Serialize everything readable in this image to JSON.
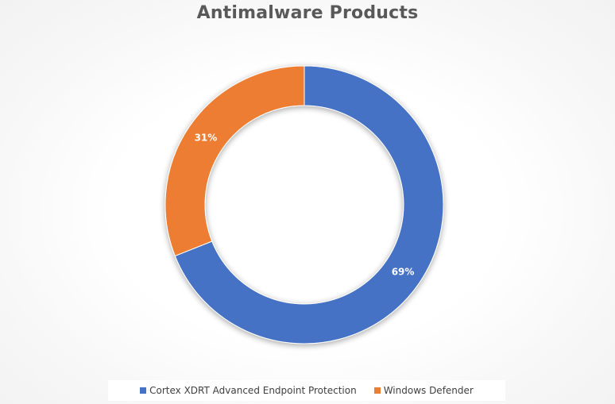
{
  "chart_data": {
    "type": "pie",
    "variant": "donut",
    "title": "Antimalware Products",
    "categories": [
      "Cortex XDRT Advanced Endpoint Protection",
      "Windows Defender"
    ],
    "values": [
      69,
      31
    ],
    "data_labels": [
      "69%",
      "31%"
    ],
    "colors": [
      "#4472C4",
      "#ED7D31"
    ],
    "legend_position": "bottom"
  }
}
